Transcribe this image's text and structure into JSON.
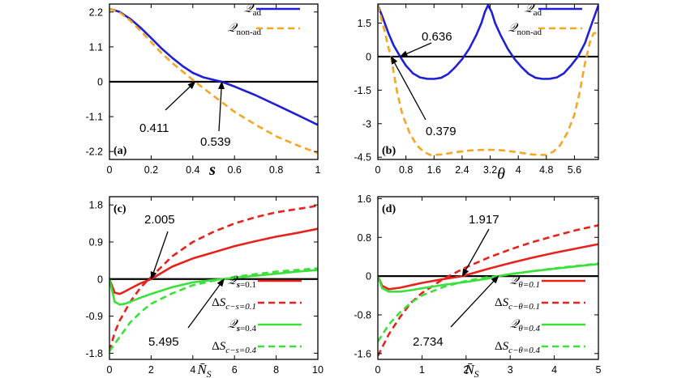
{
  "chart_data": [
    {
      "panel": "(a)",
      "type": "line",
      "xlabel": "s",
      "ylabel": "",
      "xlim": [
        0,
        1
      ],
      "ylim": [
        -2.45,
        2.45
      ],
      "xticks": [
        0,
        0.2,
        0.4,
        0.6,
        0.8,
        1
      ],
      "xtick_labels": [
        "0",
        "0.2",
        "0.4",
        "0.6",
        "0.8",
        "1"
      ],
      "yticks": [
        2.2,
        1.1,
        0,
        -1.1,
        -2.2
      ],
      "ytick_labels": [
        "2.2",
        "1.1",
        "0",
        "-1.1",
        "-2.2"
      ],
      "legend_position": "top-right",
      "series": [
        {
          "name": "Q_ad",
          "legend_main": "𝒬",
          "legend_sub": "ad",
          "color": "#1f1fd6",
          "dashed": false,
          "x": [
            0,
            0.05,
            0.1,
            0.15,
            0.2,
            0.25,
            0.3,
            0.35,
            0.4,
            0.45,
            0.5,
            0.539,
            0.6,
            0.7,
            0.8,
            0.9,
            1.0
          ],
          "y": [
            2.3,
            2.2,
            1.98,
            1.7,
            1.38,
            1.05,
            0.76,
            0.5,
            0.28,
            0.14,
            0.06,
            0.0,
            -0.15,
            -0.42,
            -0.73,
            -1.04,
            -1.36
          ]
        },
        {
          "name": "Q_non-ad",
          "legend_main": "𝒬",
          "legend_sub": "non-ad",
          "color": "#f5a623",
          "dashed": true,
          "x": [
            0,
            0.05,
            0.1,
            0.15,
            0.2,
            0.25,
            0.3,
            0.35,
            0.411,
            0.45,
            0.5,
            0.55,
            0.6,
            0.7,
            0.8,
            0.9,
            1.0
          ],
          "y": [
            2.3,
            2.18,
            1.93,
            1.6,
            1.25,
            0.9,
            0.6,
            0.33,
            0.0,
            -0.2,
            -0.45,
            -0.7,
            -0.95,
            -1.35,
            -1.72,
            -2.0,
            -2.25
          ]
        }
      ],
      "annotations": [
        {
          "text": "0.411",
          "x": 0.411,
          "y": 0
        },
        {
          "text": "0.539",
          "x": 0.539,
          "y": 0
        }
      ]
    },
    {
      "panel": "(b)",
      "type": "line",
      "xlabel": "θ",
      "ylabel": "",
      "xlim": [
        0,
        6.283
      ],
      "ylim": [
        -4.6,
        2.35
      ],
      "xticks": [
        0,
        0.8,
        1.6,
        2.4,
        3.2,
        4,
        4.8,
        5.6
      ],
      "xtick_labels": [
        "0",
        "0.8",
        "1.6",
        "2.4",
        "3.2",
        "4",
        "4.8",
        "5.6"
      ],
      "yticks": [
        1.5,
        0,
        -1.5,
        -3,
        -4.5
      ],
      "ytick_labels": [
        "1.5",
        "0",
        "-1.5",
        "-3",
        "-4.5"
      ],
      "legend_position": "top-right",
      "series": [
        {
          "name": "Q_ad",
          "legend_main": "𝒬",
          "legend_sub": "ad",
          "color": "#1f1fd6",
          "dashed": false,
          "x": [
            0,
            0.15,
            0.3,
            0.45,
            0.636,
            0.8,
            1.0,
            1.2,
            1.4,
            1.6,
            1.8,
            2.0,
            2.2,
            2.4,
            2.6,
            2.8,
            2.95,
            3.05,
            3.14,
            3.24,
            3.34,
            3.5,
            3.7,
            3.9,
            4.1,
            4.3,
            4.5,
            4.7,
            4.9,
            5.1,
            5.3,
            5.5,
            5.7,
            5.9,
            6.1,
            6.283
          ],
          "y": [
            2.3,
            1.7,
            1.05,
            0.5,
            0.0,
            -0.4,
            -0.75,
            -0.93,
            -0.99,
            -1.0,
            -0.95,
            -0.78,
            -0.48,
            -0.12,
            0.35,
            0.95,
            1.5,
            2.0,
            2.3,
            2.0,
            1.5,
            0.95,
            0.35,
            -0.12,
            -0.48,
            -0.78,
            -0.95,
            -1.0,
            -0.99,
            -0.93,
            -0.75,
            -0.4,
            0.0,
            0.6,
            1.5,
            2.3
          ]
        },
        {
          "name": "Q_non-ad",
          "legend_main": "𝒬",
          "legend_sub": "non-ad",
          "color": "#f5a623",
          "dashed": true,
          "x": [
            0,
            0.1,
            0.2,
            0.3,
            0.379,
            0.45,
            0.55,
            0.7,
            0.9,
            1.1,
            1.3,
            1.5,
            1.8,
            2.2,
            2.6,
            3.0,
            3.3,
            3.6,
            4.0,
            4.4,
            4.8,
            5.0,
            5.2,
            5.4,
            5.6,
            5.75,
            5.9,
            6.05,
            6.15,
            6.283
          ],
          "y": [
            2.3,
            1.7,
            1.1,
            0.4,
            0.0,
            -0.7,
            -1.6,
            -2.6,
            -3.4,
            -3.95,
            -4.25,
            -4.4,
            -4.38,
            -4.28,
            -4.2,
            -4.17,
            -4.17,
            -4.2,
            -4.28,
            -4.38,
            -4.4,
            -4.25,
            -3.95,
            -3.4,
            -2.6,
            -1.6,
            -0.3,
            0.7,
            1.05,
            1.05
          ]
        }
      ],
      "annotations": [
        {
          "text": "0.636",
          "x": 0.636,
          "y": 0
        },
        {
          "text": "0.379",
          "x": 0.379,
          "y": 0
        }
      ]
    },
    {
      "panel": "(c)",
      "type": "line",
      "xlabel": "N̄S",
      "ylabel": "",
      "xlim": [
        0,
        10
      ],
      "ylim": [
        -1.95,
        2.0
      ],
      "xticks": [
        0,
        2,
        4,
        6,
        8,
        10
      ],
      "xtick_labels": [
        "0",
        "2",
        "4",
        "6",
        "8",
        "10"
      ],
      "yticks": [
        1.8,
        0.9,
        0,
        -0.9,
        -1.8
      ],
      "ytick_labels": [
        "1.8",
        "0.9",
        "0",
        "-0.9",
        "-1.8"
      ],
      "legend_position": "bottom-right",
      "series": [
        {
          "name": "Q_s=0.1",
          "legend_main": "𝒬",
          "legend_sub": "s=0.1",
          "legend_sub_style": "bold-s",
          "color": "#e8221b",
          "dashed": false,
          "x": [
            0,
            0.25,
            0.5,
            0.75,
            1.0,
            1.5,
            2.005,
            2.5,
            3,
            4,
            5,
            6,
            7,
            8,
            9,
            10
          ],
          "y": [
            0,
            -0.33,
            -0.36,
            -0.3,
            -0.23,
            -0.1,
            0.0,
            0.15,
            0.3,
            0.5,
            0.65,
            0.8,
            0.92,
            1.03,
            1.12,
            1.22
          ]
        },
        {
          "name": "ΔS_c−s=0.1",
          "legend_main": "ΔS",
          "legend_sub": "c−s=0.1",
          "color": "#e8221b",
          "dashed": true,
          "x": [
            0,
            0.25,
            0.5,
            1.0,
            1.5,
            2.0,
            2.5,
            3,
            4,
            5,
            6,
            7,
            8,
            9,
            10
          ],
          "y": [
            -1.75,
            -1.3,
            -1.0,
            -0.55,
            -0.2,
            0.05,
            0.3,
            0.55,
            0.9,
            1.15,
            1.35,
            1.5,
            1.62,
            1.7,
            1.78
          ]
        },
        {
          "name": "Q_s=0.4",
          "legend_main": "𝒬",
          "legend_sub": "s=0.4",
          "legend_sub_style": "bold-s",
          "color": "#3be03b",
          "dashed": false,
          "x": [
            0,
            0.25,
            0.5,
            0.75,
            1.0,
            1.5,
            2,
            3,
            4,
            5,
            5.495,
            6,
            7,
            8,
            9,
            10
          ],
          "y": [
            0,
            -0.55,
            -0.62,
            -0.6,
            -0.55,
            -0.45,
            -0.36,
            -0.2,
            -0.08,
            -0.02,
            0.0,
            0.03,
            0.08,
            0.13,
            0.18,
            0.22
          ]
        },
        {
          "name": "ΔS_c−s=0.4",
          "legend_main": "ΔS",
          "legend_sub": "c−s=0.4",
          "color": "#3be03b",
          "dashed": true,
          "x": [
            0,
            0.5,
            1,
            1.5,
            2,
            3,
            4,
            5,
            5.495,
            6,
            7,
            8,
            9,
            10
          ],
          "y": [
            -1.75,
            -1.4,
            -1.05,
            -0.8,
            -0.6,
            -0.35,
            -0.15,
            -0.04,
            0.0,
            0.05,
            0.12,
            0.18,
            0.22,
            0.26
          ]
        }
      ],
      "annotations": [
        {
          "text": "2.005",
          "x": 2.005,
          "y": 0
        },
        {
          "text": "5.495",
          "x": 5.495,
          "y": 0
        }
      ]
    },
    {
      "panel": "(d)",
      "type": "line",
      "xlabel": "N̄S",
      "ylabel": "",
      "xlim": [
        0,
        5
      ],
      "ylim": [
        -1.72,
        1.64
      ],
      "xticks": [
        0,
        1,
        2,
        3,
        4,
        5
      ],
      "xtick_labels": [
        "0",
        "1",
        "2",
        "3",
        "4",
        "5"
      ],
      "yticks": [
        1.6,
        0.8,
        0,
        -0.8,
        -1.6
      ],
      "ytick_labels": [
        "1.6",
        "0.8",
        "0",
        "-0.8",
        "-1.6"
      ],
      "legend_position": "bottom-right",
      "series": [
        {
          "name": "Q_θ=0.1",
          "legend_main": "𝒬",
          "legend_sub": "θ=0.1",
          "color": "#e8221b",
          "dashed": false,
          "x": [
            0,
            0.1,
            0.25,
            0.5,
            0.75,
            1.0,
            1.5,
            1.917,
            2.5,
            3,
            3.5,
            4,
            4.5,
            5
          ],
          "y": [
            0,
            -0.2,
            -0.27,
            -0.24,
            -0.19,
            -0.14,
            -0.06,
            0.0,
            0.15,
            0.27,
            0.38,
            0.48,
            0.57,
            0.66
          ]
        },
        {
          "name": "ΔS_c−θ=0.1",
          "legend_main": "ΔS",
          "legend_sub": "c−θ=0.1",
          "color": "#e8221b",
          "dashed": true,
          "x": [
            0,
            0.25,
            0.5,
            0.75,
            1.0,
            1.5,
            2.0,
            2.5,
            3,
            3.5,
            4,
            4.5,
            5
          ],
          "y": [
            -1.65,
            -1.2,
            -0.85,
            -0.55,
            -0.35,
            -0.05,
            0.18,
            0.38,
            0.55,
            0.7,
            0.83,
            0.95,
            1.05
          ]
        },
        {
          "name": "Q_θ=0.4",
          "legend_main": "𝒬",
          "legend_sub": "θ=0.4",
          "color": "#3be03b",
          "dashed": false,
          "x": [
            0,
            0.1,
            0.25,
            0.5,
            0.75,
            1.0,
            1.5,
            2,
            2.5,
            2.734,
            3,
            3.5,
            4,
            4.5,
            5
          ],
          "y": [
            0,
            -0.25,
            -0.32,
            -0.32,
            -0.29,
            -0.25,
            -0.18,
            -0.12,
            -0.05,
            0.0,
            0.04,
            0.1,
            0.15,
            0.2,
            0.25
          ]
        },
        {
          "name": "ΔS_c−θ=0.4",
          "legend_main": "ΔS",
          "legend_sub": "c−θ=0.4",
          "color": "#3be03b",
          "dashed": true,
          "x": [
            0,
            0.25,
            0.5,
            0.75,
            1.0,
            1.5,
            2,
            2.5,
            2.734,
            3,
            3.5,
            4,
            4.5,
            5
          ],
          "y": [
            -1.35,
            -1.0,
            -0.75,
            -0.55,
            -0.4,
            -0.22,
            -0.1,
            -0.02,
            0.0,
            0.04,
            0.1,
            0.16,
            0.21,
            0.26
          ]
        }
      ],
      "annotations": [
        {
          "text": "1.917",
          "x": 1.917,
          "y": 0
        },
        {
          "text": "2.734",
          "x": 2.734,
          "y": 0
        }
      ]
    }
  ]
}
